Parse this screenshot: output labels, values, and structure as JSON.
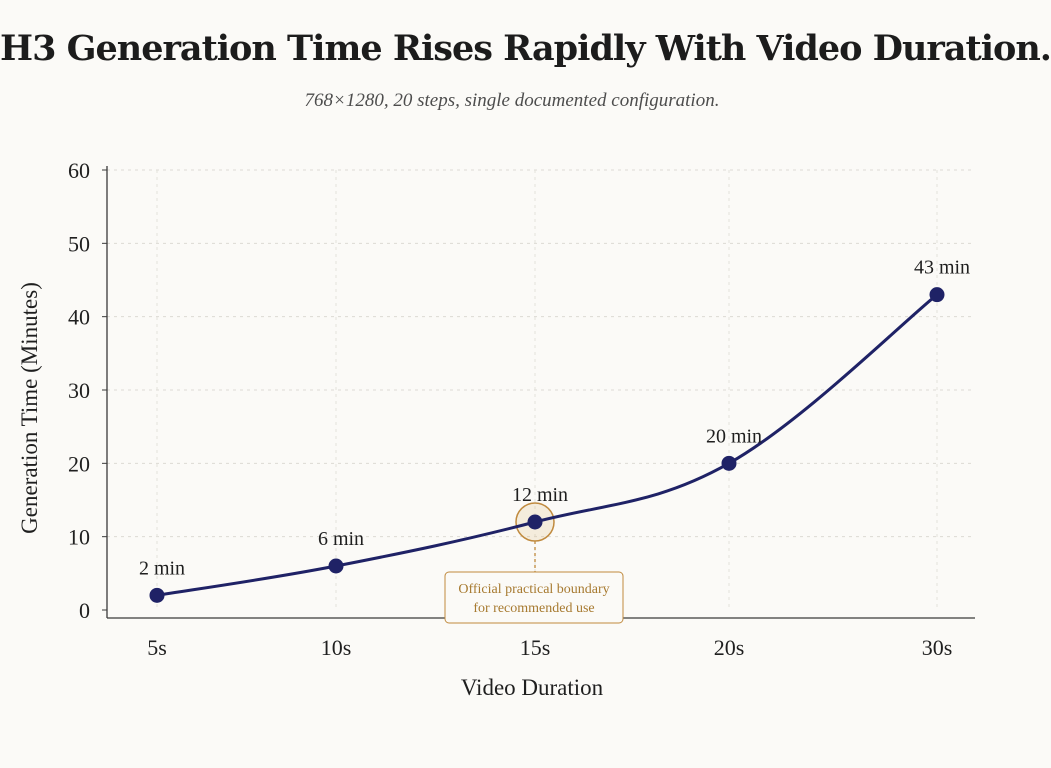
{
  "chart_data": {
    "type": "line",
    "title": "H3 Generation Time Rises Rapidly With Video Duration.",
    "subtitle": "768×1280, 20 steps, single documented configuration.",
    "xlabel": "Video Duration",
    "ylabel": "Generation Time (Minutes)",
    "categories": [
      "5s",
      "10s",
      "15s",
      "20s",
      "30s"
    ],
    "series": [
      {
        "values": [
          2,
          6,
          12,
          20,
          43
        ],
        "data_labels": [
          "2 min",
          "6 min",
          "12 min",
          "20 min",
          "43 min"
        ],
        "color": "#1f2266"
      }
    ],
    "ylim": [
      0,
      60
    ],
    "yticks": [
      0,
      10,
      20,
      30,
      40,
      50,
      60
    ],
    "grid": true,
    "annotation": {
      "category": "15s",
      "lines": [
        "Official practical boundary",
        "for recommended use"
      ],
      "color": "#c08a3e"
    }
  }
}
